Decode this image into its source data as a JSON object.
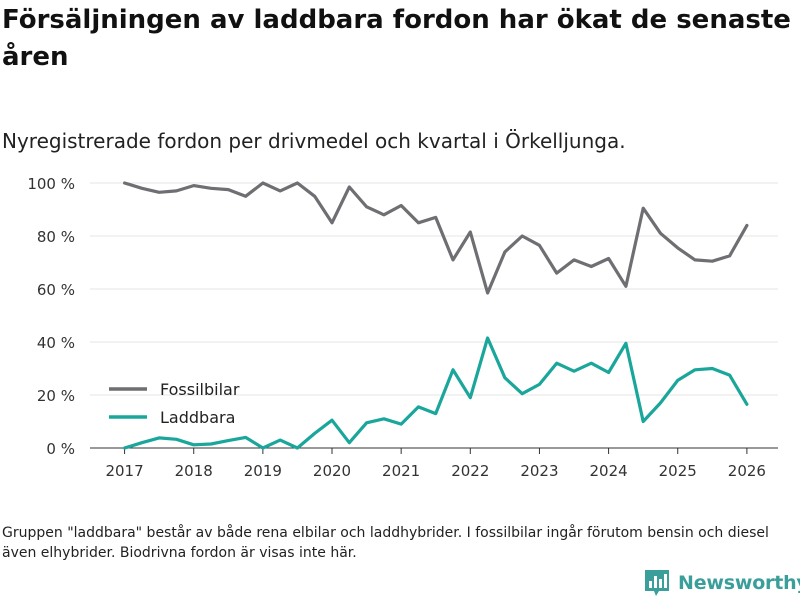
{
  "header": {
    "title": "Försäljningen av laddbara fordon har ökat de senaste åren",
    "subtitle": "Nyregistrerade fordon per drivmedel och kvartal i Örkelljunga."
  },
  "footer": {
    "note": "Gruppen \"laddbara\" består av både rena elbilar och laddhybrider. I fossilbilar ingår förutom bensin och diesel även elhybrider. Biodrivna fordon är visas inte här.",
    "brand": "Newsworthy"
  },
  "colors": {
    "fossil": "#6f6e73",
    "laddbara": "#1aa69b",
    "grid": "#e6e6e6",
    "axis": "#333333",
    "brand": "#3a9e9a"
  },
  "chart_data": {
    "type": "line",
    "title": "Försäljningen av laddbara fordon har ökat de senaste åren",
    "subtitle": "Nyregistrerade fordon per drivmedel och kvartal i Örkelljunga.",
    "xlabel": "",
    "ylabel": "",
    "x": [
      2017.0,
      2017.25,
      2017.5,
      2017.75,
      2018.0,
      2018.25,
      2018.5,
      2018.75,
      2019.0,
      2019.25,
      2019.5,
      2019.75,
      2020.0,
      2020.25,
      2020.5,
      2020.75,
      2021.0,
      2021.25,
      2021.5,
      2021.75,
      2022.0,
      2022.25,
      2022.5,
      2022.75,
      2023.0,
      2023.25,
      2023.5,
      2023.75,
      2024.0,
      2024.25,
      2024.5,
      2024.75,
      2025.0,
      2025.25,
      2025.5,
      2025.75,
      2026.0
    ],
    "series": [
      {
        "name": "Fossilbilar",
        "color": "#6f6e73",
        "values": [
          100,
          98,
          96.5,
          97,
          99,
          98,
          97.5,
          95,
          100,
          97,
          100,
          95,
          85,
          98.5,
          91,
          88,
          91.5,
          85,
          87,
          71,
          81.5,
          58.5,
          74,
          80,
          76.5,
          66,
          71,
          68.5,
          71.5,
          61,
          90.5,
          81,
          75.5,
          71,
          70.5,
          72.5,
          84
        ]
      },
      {
        "name": "Laddbara",
        "color": "#1aa69b",
        "values": [
          0,
          2,
          3.8,
          3.3,
          1.2,
          1.5,
          2.8,
          4,
          0,
          3,
          0,
          5.5,
          10.5,
          2,
          9.5,
          11,
          9,
          15.5,
          13,
          29.5,
          19,
          41.5,
          26.5,
          20.5,
          24,
          32,
          29,
          32,
          28.5,
          39.5,
          10,
          17,
          25.5,
          29.5,
          30,
          27.5,
          16.5
        ]
      }
    ],
    "ylim": [
      0,
      100
    ],
    "yticks": [
      0,
      20,
      40,
      60,
      80,
      100
    ],
    "ytick_labels": [
      "0 %",
      "20 %",
      "40 %",
      "60 %",
      "80 %",
      "100 %"
    ],
    "xticks": [
      2017,
      2018,
      2019,
      2020,
      2021,
      2022,
      2023,
      2024,
      2025,
      2026
    ],
    "xtick_labels": [
      "2017",
      "2018",
      "2019",
      "2020",
      "2021",
      "2022",
      "2023",
      "2024",
      "2025",
      "2026"
    ],
    "xlim": [
      2016.5,
      2026.45
    ],
    "grid": true,
    "legend": {
      "placement": "bottom-left",
      "entries": [
        "Fossilbilar",
        "Laddbara"
      ]
    }
  }
}
